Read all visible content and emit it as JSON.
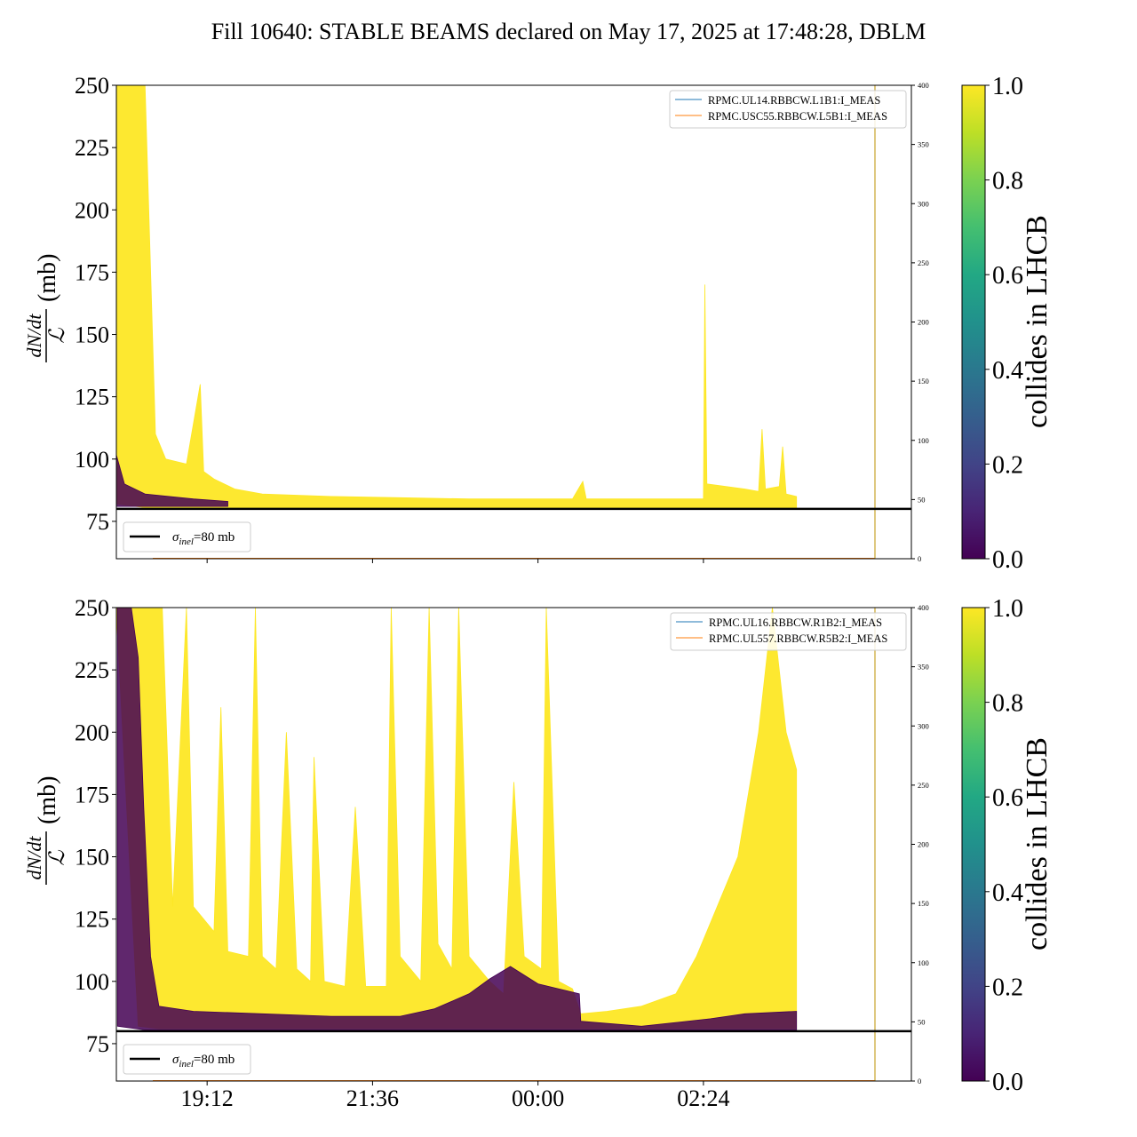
{
  "figure_title": "Fill 10640: STABLE BEAMS declared on May 17, 2025 at 17:48:28, DBLM",
  "colors": {
    "collides_high": "#fde725",
    "collides_low": "#440154",
    "blue_line": "#1f77b4",
    "orange_line": "#ff7f0e",
    "reference": "#000000"
  },
  "chart_data": [
    {
      "type": "line",
      "title": "",
      "xlabel": "",
      "ylabel": "dN/dt / ℒ (mb)",
      "ylim": [
        60,
        250
      ],
      "yticks": [
        75,
        100,
        125,
        150,
        175,
        200,
        225,
        250
      ],
      "xlim": [
        "17:53",
        "05:25"
      ],
      "xticks": [
        "19:12",
        "21:36",
        "00:00",
        "02:24"
      ],
      "xtick_labels_shown": false,
      "secondary_ylim": [
        0,
        400
      ],
      "secondary_yticks": [
        0,
        50,
        100,
        150,
        200,
        250,
        300,
        350,
        400
      ],
      "legend": {
        "placement": "upper right",
        "entries": [
          "RPMC.UL14.RBBCW.L1B1:I_MEAS",
          "RPMC.USC55.RBBCW.L5B1:I_MEAS"
        ]
      },
      "reference_line": {
        "y": 80,
        "label": "σinel=80 mb",
        "legend_placement": "lower left"
      },
      "colorbar": {
        "label": "collides in LHCB",
        "range": [
          0.0,
          1.0
        ],
        "ticks": [
          "0.0",
          "0.2",
          "0.4",
          "0.6",
          "0.8",
          "1.0"
        ]
      },
      "series": [
        {
          "name": "",
          "color": "#fde725",
          "envelope_upper": [
            [
              17.88,
              250
            ],
            [
              18.3,
              250
            ],
            [
              18.45,
              110
            ],
            [
              18.6,
              100
            ],
            [
              18.9,
              98
            ],
            [
              19.1,
              130
            ],
            [
              19.15,
              95
            ],
            [
              19.3,
              92
            ],
            [
              19.6,
              88
            ],
            [
              20.0,
              86
            ],
            [
              21.0,
              85
            ],
            [
              22.0,
              84.5
            ],
            [
              23.0,
              84
            ],
            [
              0.0,
              84
            ],
            [
              0.5,
              84
            ],
            [
              0.65,
              91
            ],
            [
              0.7,
              84
            ],
            [
              1.0,
              84
            ],
            [
              2.0,
              84
            ],
            [
              2.4,
              84
            ],
            [
              2.42,
              170
            ],
            [
              2.45,
              90
            ],
            [
              3.0,
              88
            ],
            [
              3.2,
              87
            ],
            [
              3.25,
              112
            ],
            [
              3.3,
              88
            ],
            [
              3.5,
              89
            ],
            [
              3.55,
              105
            ],
            [
              3.6,
              86
            ],
            [
              3.75,
              85
            ]
          ],
          "envelope_lower": [
            [
              17.88,
              82
            ],
            [
              18.3,
              80.5
            ],
            [
              19.0,
              80.5
            ],
            [
              21.0,
              80.5
            ],
            [
              0.0,
              80.5
            ],
            [
              3.75,
              80.5
            ]
          ]
        },
        {
          "name": "",
          "color": "#440154",
          "envelope_upper": [
            [
              17.85,
              105
            ],
            [
              18.0,
              90
            ],
            [
              18.3,
              86
            ],
            [
              19.0,
              84
            ],
            [
              19.5,
              83
            ]
          ],
          "envelope_lower": [
            [
              17.85,
              81
            ],
            [
              19.5,
              81
            ]
          ]
        }
      ]
    },
    {
      "type": "line",
      "title": "",
      "xlabel": "",
      "ylabel": "dN/dt / ℒ (mb)",
      "ylim": [
        60,
        250
      ],
      "yticks": [
        75,
        100,
        125,
        150,
        175,
        200,
        225,
        250
      ],
      "xlim": [
        "17:53",
        "05:25"
      ],
      "xticks": [
        "19:12",
        "21:36",
        "00:00",
        "02:24"
      ],
      "xtick_labels_shown": true,
      "secondary_ylim": [
        0,
        400
      ],
      "secondary_yticks": [
        0,
        50,
        100,
        150,
        200,
        250,
        300,
        350,
        400
      ],
      "legend": {
        "placement": "upper right",
        "entries": [
          "RPMC.UL16.RBBCW.R1B2:I_MEAS",
          "RPMC.UL557.RBBCW.R5B2:I_MEAS"
        ]
      },
      "reference_line": {
        "y": 80,
        "label": "σinel=80 mb",
        "legend_placement": "lower left"
      },
      "colorbar": {
        "label": "collides in LHCB",
        "range": [
          0.0,
          1.0
        ],
        "ticks": [
          "0.0",
          "0.2",
          "0.4",
          "0.6",
          "0.8",
          "1.0"
        ]
      },
      "series": [
        {
          "name": "",
          "color": "#fde725",
          "envelope_upper": [
            [
              17.88,
              250
            ],
            [
              18.3,
              250
            ],
            [
              18.55,
              250
            ],
            [
              18.7,
              130
            ],
            [
              18.9,
              250
            ],
            [
              19.0,
              130
            ],
            [
              19.3,
              120
            ],
            [
              19.4,
              210
            ],
            [
              19.5,
              112
            ],
            [
              19.8,
              110
            ],
            [
              19.9,
              250
            ],
            [
              20.0,
              110
            ],
            [
              20.2,
              105
            ],
            [
              20.35,
              200
            ],
            [
              20.5,
              105
            ],
            [
              20.7,
              100
            ],
            [
              20.75,
              190
            ],
            [
              20.9,
              100
            ],
            [
              21.2,
              98
            ],
            [
              21.35,
              170
            ],
            [
              21.5,
              98
            ],
            [
              21.8,
              98
            ],
            [
              21.87,
              250
            ],
            [
              22.0,
              110
            ],
            [
              22.3,
              100
            ],
            [
              22.42,
              250
            ],
            [
              22.55,
              115
            ],
            [
              22.75,
              105
            ],
            [
              22.85,
              250
            ],
            [
              23.0,
              110
            ],
            [
              23.3,
              100
            ],
            [
              23.5,
              95
            ],
            [
              23.65,
              180
            ],
            [
              23.8,
              110
            ],
            [
              24.05,
              105
            ],
            [
              24.12,
              250
            ],
            [
              24.3,
              100
            ],
            [
              24.5,
              97
            ],
            [
              24.62,
              87
            ],
            [
              25.0,
              88
            ],
            [
              25.5,
              90
            ],
            [
              26.0,
              95
            ],
            [
              26.3,
              110
            ],
            [
              26.6,
              130
            ],
            [
              26.9,
              150
            ],
            [
              27.2,
              200
            ],
            [
              27.4,
              250
            ],
            [
              27.6,
              200
            ],
            [
              27.75,
              185
            ]
          ],
          "envelope_lower": [
            [
              18.2,
              82
            ],
            [
              18.5,
              81
            ],
            [
              19.0,
              81
            ],
            [
              21.0,
              81
            ],
            [
              24.62,
              81
            ],
            [
              27.75,
              81
            ]
          ]
        },
        {
          "name": "",
          "color": "#440154",
          "envelope_upper": [
            [
              17.9,
              250
            ],
            [
              18.1,
              250
            ],
            [
              18.2,
              230
            ],
            [
              18.28,
              170
            ],
            [
              18.38,
              110
            ],
            [
              18.5,
              90
            ],
            [
              19.0,
              88
            ],
            [
              20.0,
              87
            ],
            [
              21.0,
              86
            ],
            [
              22.0,
              86
            ],
            [
              22.5,
              89
            ],
            [
              23.0,
              95
            ],
            [
              23.3,
              101
            ],
            [
              23.6,
              106
            ],
            [
              24.0,
              99
            ],
            [
              24.6,
              95
            ],
            [
              24.62,
              84
            ],
            [
              25.5,
              82
            ],
            [
              26.5,
              85
            ],
            [
              27.0,
              87
            ],
            [
              27.75,
              88
            ]
          ],
          "envelope_lower": [
            [
              17.9,
              82
            ],
            [
              18.3,
              80.5
            ],
            [
              20.0,
              80.5
            ],
            [
              24.62,
              80.5
            ],
            [
              27.75,
              80.5
            ]
          ]
        }
      ]
    }
  ]
}
